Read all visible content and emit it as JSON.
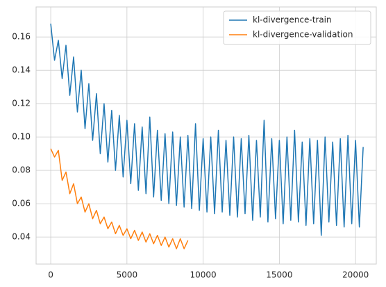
{
  "chart_data": {
    "type": "line",
    "series": [
      {
        "name": "kl-divergence-train",
        "color": "#1f77b4",
        "x": [
          0,
          250,
          500,
          750,
          1000,
          1250,
          1500,
          1750,
          2000,
          2250,
          2500,
          2750,
          3000,
          3250,
          3500,
          3750,
          4000,
          4250,
          4500,
          4750,
          5000,
          5250,
          5500,
          5750,
          6000,
          6250,
          6500,
          6750,
          7000,
          7250,
          7500,
          7750,
          8000,
          8250,
          8500,
          8750,
          9000,
          9250,
          9500,
          9750,
          10000,
          10250,
          10500,
          10750,
          11000,
          11250,
          11500,
          11750,
          12000,
          12250,
          12500,
          12750,
          13000,
          13250,
          13500,
          13750,
          14000,
          14250,
          14500,
          14750,
          15000,
          15250,
          15500,
          15750,
          16000,
          16250,
          16500,
          16750,
          17000,
          17250,
          17500,
          17750,
          18000,
          18250,
          18500,
          18750,
          19000,
          19250,
          19500,
          19750,
          20000,
          20250,
          20500
        ],
        "values": [
          0.168,
          0.146,
          0.158,
          0.135,
          0.155,
          0.125,
          0.148,
          0.115,
          0.14,
          0.105,
          0.132,
          0.098,
          0.126,
          0.09,
          0.12,
          0.085,
          0.116,
          0.08,
          0.113,
          0.076,
          0.11,
          0.072,
          0.108,
          0.068,
          0.106,
          0.066,
          0.112,
          0.064,
          0.104,
          0.062,
          0.102,
          0.06,
          0.103,
          0.059,
          0.1,
          0.058,
          0.101,
          0.057,
          0.108,
          0.056,
          0.099,
          0.055,
          0.1,
          0.054,
          0.104,
          0.055,
          0.098,
          0.053,
          0.1,
          0.052,
          0.099,
          0.054,
          0.101,
          0.05,
          0.098,
          0.052,
          0.11,
          0.049,
          0.099,
          0.051,
          0.098,
          0.048,
          0.1,
          0.05,
          0.104,
          0.049,
          0.097,
          0.047,
          0.099,
          0.048,
          0.098,
          0.041,
          0.1,
          0.049,
          0.097,
          0.047,
          0.099,
          0.046,
          0.101,
          0.048,
          0.098,
          0.046,
          0.094
        ]
      },
      {
        "name": "kl-divergence-validation",
        "color": "#ff7f0e",
        "x": [
          0,
          250,
          500,
          750,
          1000,
          1250,
          1500,
          1750,
          2000,
          2250,
          2500,
          2750,
          3000,
          3250,
          3500,
          3750,
          4000,
          4250,
          4500,
          4750,
          5000,
          5250,
          5500,
          5750,
          6000,
          6250,
          6500,
          6750,
          7000,
          7250,
          7500,
          7750,
          8000,
          8250,
          8500,
          8750,
          9000
        ],
        "values": [
          0.093,
          0.088,
          0.092,
          0.074,
          0.079,
          0.066,
          0.072,
          0.06,
          0.064,
          0.055,
          0.06,
          0.051,
          0.056,
          0.048,
          0.052,
          0.045,
          0.049,
          0.042,
          0.047,
          0.041,
          0.045,
          0.039,
          0.044,
          0.038,
          0.043,
          0.037,
          0.042,
          0.036,
          0.041,
          0.035,
          0.04,
          0.034,
          0.039,
          0.033,
          0.039,
          0.033,
          0.038
        ]
      }
    ],
    "xlim": [
      -960,
      21360
    ],
    "xticks": [
      0,
      5000,
      10000,
      15000,
      20000
    ],
    "ylim": [
      0.0238,
      0.178
    ],
    "yticks": [
      0.04,
      0.06,
      0.08,
      {
        "value": 0.1,
        "label": "0.10"
      },
      0.12,
      0.14,
      0.16
    ],
    "grid": true,
    "legend": "upper right"
  }
}
